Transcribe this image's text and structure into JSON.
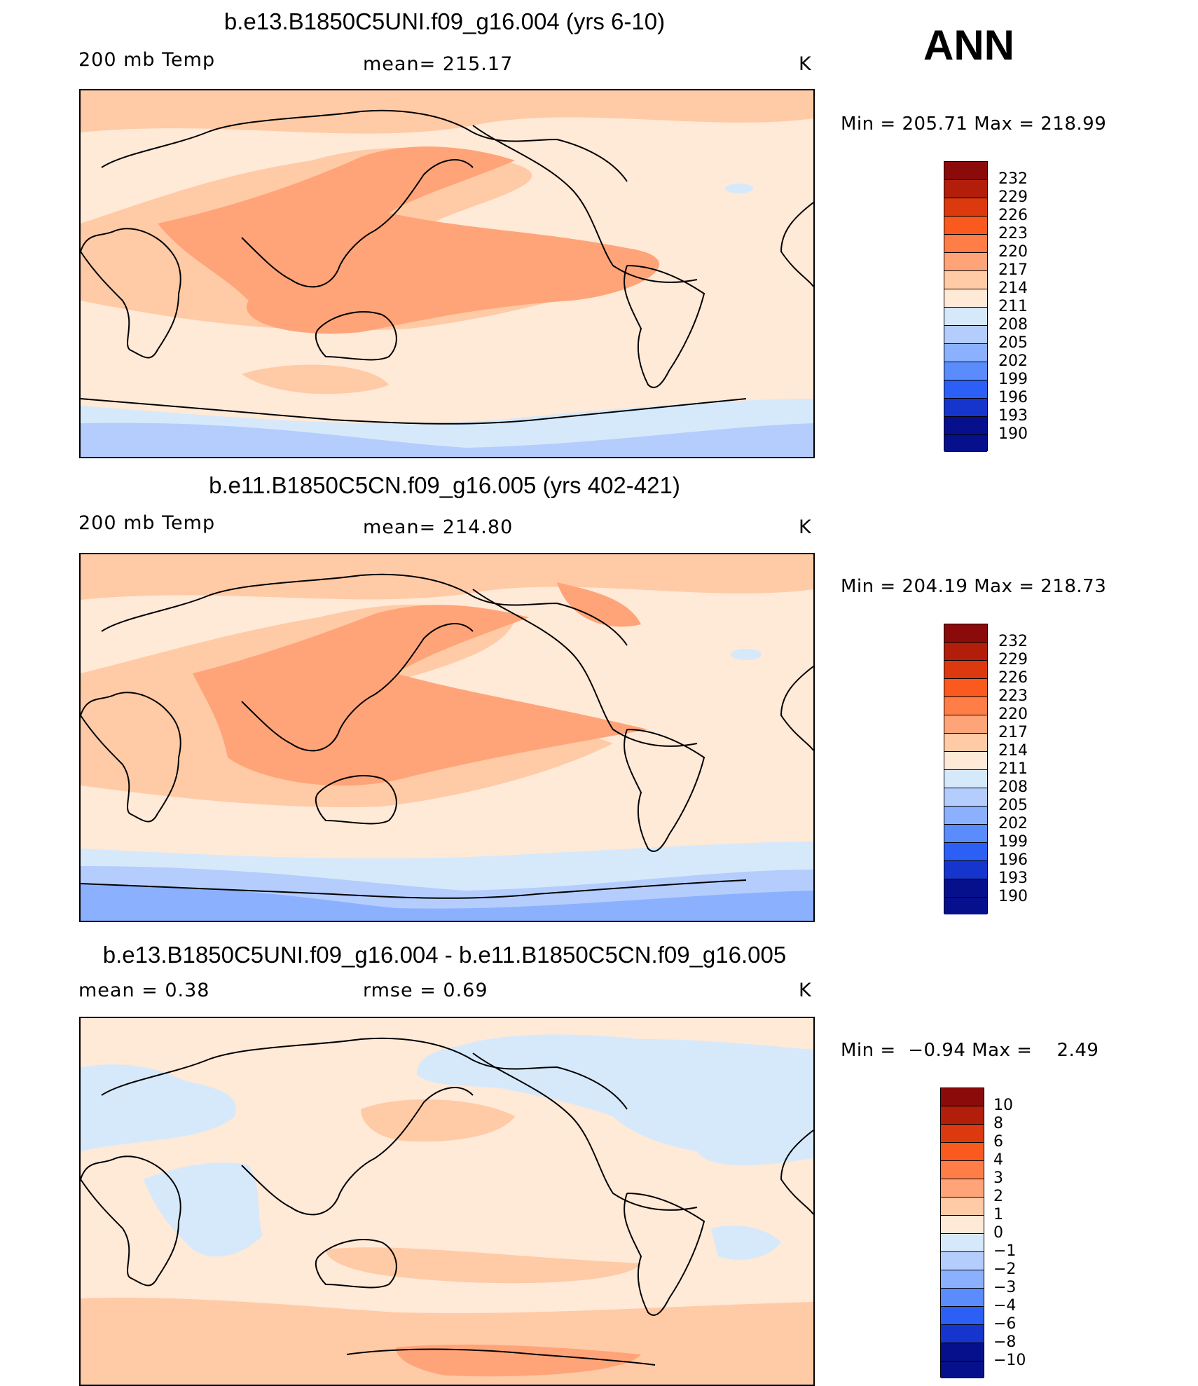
{
  "season": "ANN",
  "panels": [
    {
      "title": "b.e13.B1850C5UNI.f09_g16.004 (yrs 6-10)",
      "left_label": "200 mb Temp",
      "mid_label": "mean= 215.17",
      "unit": "K",
      "minmax": "Min = 205.71 Max = 218.99",
      "levels": [
        "232",
        "229",
        "226",
        "223",
        "220",
        "217",
        "214",
        "211",
        "208",
        "205",
        "202",
        "199",
        "196",
        "193",
        "190"
      ]
    },
    {
      "title": "b.e11.B1850C5CN.f09_g16.005 (yrs 402-421)",
      "left_label": "200 mb Temp",
      "mid_label": "mean= 214.80",
      "unit": "K",
      "minmax": "Min = 204.19 Max = 218.73",
      "levels": [
        "232",
        "229",
        "226",
        "223",
        "220",
        "217",
        "214",
        "211",
        "208",
        "205",
        "202",
        "199",
        "196",
        "193",
        "190"
      ]
    },
    {
      "title": "b.e13.B1850C5UNI.f09_g16.004 - b.e11.B1850C5CN.f09_g16.005",
      "left_label": "mean =    0.38",
      "mid_label": "rmse =    0.69",
      "unit": "K",
      "minmax": "Min =  −0.94 Max =    2.49",
      "levels": [
        "10",
        "8",
        "6",
        "4",
        "3",
        "2",
        "1",
        "0",
        "−1",
        "−2",
        "−3",
        "−4",
        "−6",
        "−8",
        "−10"
      ]
    }
  ],
  "colors": {
    "scale": [
      "#8b0a0a",
      "#b21e0a",
      "#dc3a0e",
      "#fa5a1e",
      "#ff7d46",
      "#ffa478",
      "#ffcaa6",
      "#ffe9d7",
      "#d6e9fb",
      "#b4cdfd",
      "#8bb0fe",
      "#5a8cfb",
      "#2c5ff5",
      "#1535cd",
      "#060f8c"
    ]
  }
}
